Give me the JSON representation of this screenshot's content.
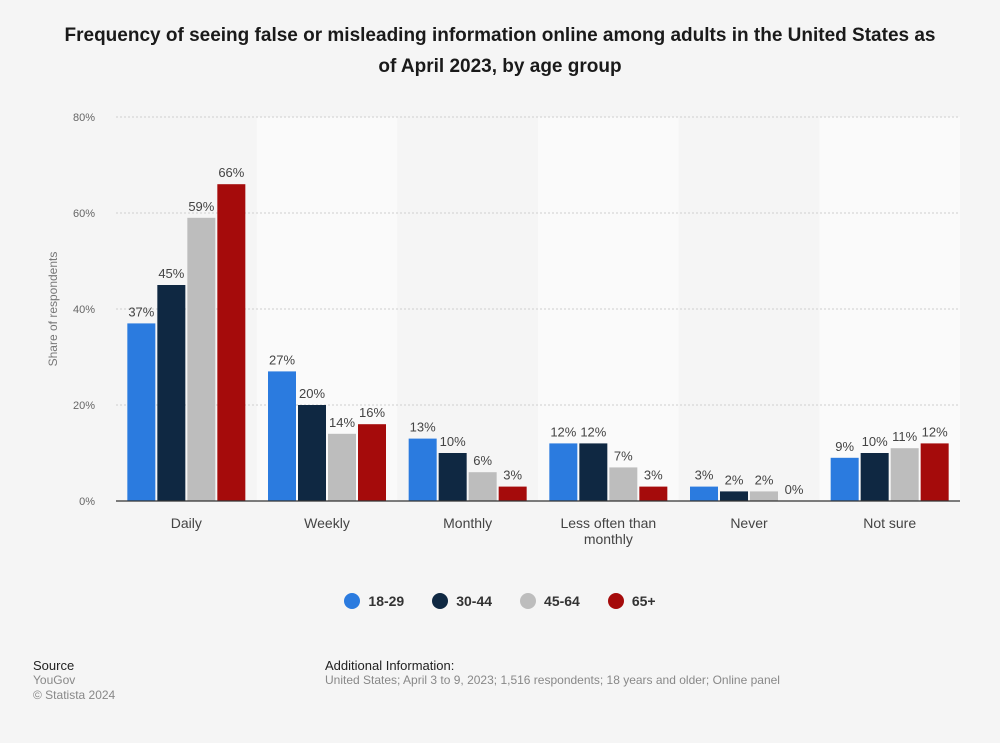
{
  "title": "Frequency of seeing false or misleading information online among adults in the United States as of April 2023, by age group",
  "chart_data": {
    "type": "bar",
    "ylabel": "Share of respondents",
    "ylim": [
      0,
      80
    ],
    "yticks": [
      "0%",
      "20%",
      "40%",
      "60%",
      "80%"
    ],
    "categories": [
      "Daily",
      "Weekly",
      "Monthly",
      "Less often than monthly",
      "Never",
      "Not sure"
    ],
    "series": [
      {
        "name": "18-29",
        "color": "#2b7bdf",
        "values": [
          37,
          27,
          13,
          12,
          3,
          9
        ]
      },
      {
        "name": "30-44",
        "color": "#0f2842",
        "values": [
          45,
          20,
          10,
          12,
          2,
          10
        ]
      },
      {
        "name": "45-64",
        "color": "#bdbdbd",
        "values": [
          59,
          14,
          6,
          7,
          2,
          11
        ]
      },
      {
        "name": "65+",
        "color": "#a50b0b",
        "values": [
          66,
          16,
          3,
          3,
          0,
          12
        ]
      }
    ],
    "grid": true,
    "legend": "bottom"
  },
  "footer": {
    "source_heading": "Source",
    "source": "YouGov",
    "copyright": "© Statista 2024",
    "info_heading": "Additional Information:",
    "info": "United States; April 3 to 9, 2023; 1,516 respondents; 18 years and older; Online panel"
  }
}
